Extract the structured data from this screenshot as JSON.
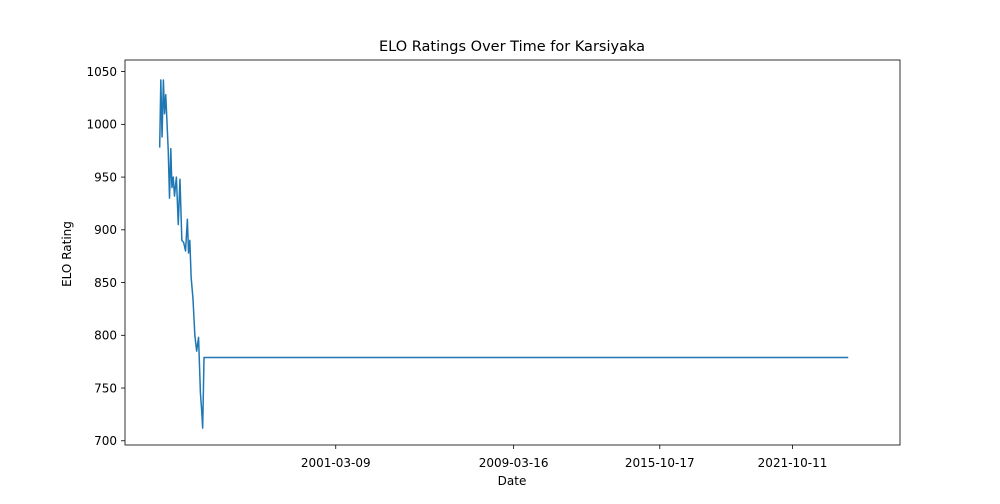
{
  "chart_data": {
    "type": "line",
    "title": "ELO Ratings Over Time for Karsiyaka",
    "xlabel": "Date",
    "ylabel": "ELO Rating",
    "x_ticks": [
      "2001-03-09",
      "2009-03-16",
      "2015-10-17",
      "2021-10-11"
    ],
    "x_tick_positions": [
      "2001-03-09",
      "2009-03-16",
      "2015-10-17",
      "2021-10-11"
    ],
    "y_ticks": [
      700,
      750,
      800,
      850,
      900,
      950,
      1000,
      1050
    ],
    "xlim": [
      "1991-09-08",
      "2026-08-15"
    ],
    "ylim": [
      696,
      1061
    ],
    "grid": false,
    "line_color": "#1f77b4",
    "series": [
      {
        "values": [
          [
            "1993-04-01",
            978
          ],
          [
            "1993-04-20",
            1042
          ],
          [
            "1993-05-10",
            988
          ],
          [
            "1993-06-01",
            1042
          ],
          [
            "1993-06-20",
            1010
          ],
          [
            "1993-07-10",
            1028
          ],
          [
            "1993-08-01",
            1000
          ],
          [
            "1993-08-20",
            975
          ],
          [
            "1993-09-10",
            930
          ],
          [
            "1993-10-01",
            977
          ],
          [
            "1993-10-20",
            940
          ],
          [
            "1993-11-10",
            950
          ],
          [
            "1993-12-01",
            932
          ],
          [
            "1994-01-01",
            950
          ],
          [
            "1994-02-01",
            905
          ],
          [
            "1994-03-01",
            948
          ],
          [
            "1994-04-01",
            890
          ],
          [
            "1994-05-01",
            888
          ],
          [
            "1994-06-01",
            880
          ],
          [
            "1994-07-01",
            910
          ],
          [
            "1994-07-20",
            878
          ],
          [
            "1994-08-10",
            890
          ],
          [
            "1994-09-01",
            855
          ],
          [
            "1994-10-01",
            835
          ],
          [
            "1994-11-01",
            800
          ],
          [
            "1994-12-01",
            785
          ],
          [
            "1995-01-01",
            798
          ],
          [
            "1995-02-01",
            745
          ],
          [
            "1995-02-20",
            730
          ],
          [
            "1995-03-10",
            712
          ],
          [
            "1995-04-01",
            779
          ],
          [
            "2024-04-15",
            779
          ]
        ]
      }
    ]
  }
}
